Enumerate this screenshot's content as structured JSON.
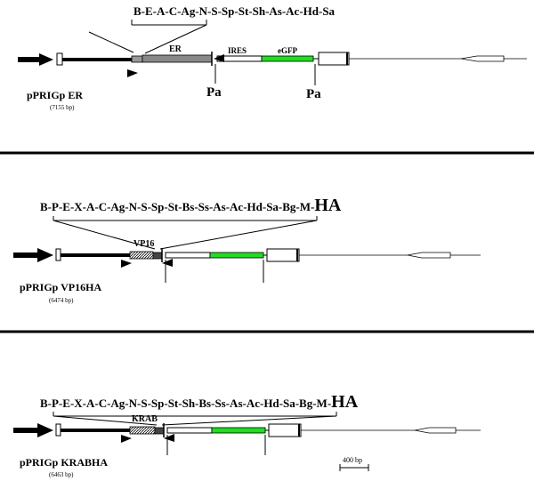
{
  "panels": [
    {
      "sites": "B-E-A-C-Ag-N-S-Sp-St-Sh-As-Ac-Hd-Sa",
      "ha_tag": "",
      "insert_label": "ER",
      "ires_label": "IRES",
      "gfp_label": "eGFP",
      "pa_left": "Pa",
      "pa_right": "Pa",
      "plasmid_name": "pPRIGp ER",
      "plasmid_size": "(7155 bp)"
    },
    {
      "sites": "B-P-E-X-A-C-Ag-N-S-Sp-St-Bs-Ss-As-Ac-Hd-Sa-Bg-M-",
      "ha_tag": "HA",
      "insert_label": "VP16",
      "plasmid_name": "pPRIGp VP16HA",
      "plasmid_size": "(6474  bp)"
    },
    {
      "sites": "B-P-E-X-A-C-Ag-N-S-Sp-St-Sh-Bs-Ss-As-Ac-Hd-Sa-Bg-M-",
      "ha_tag": "HA",
      "insert_label": "KRAB",
      "plasmid_name": "pPRIGp KRABHA",
      "plasmid_size": "(6463  bp)"
    }
  ],
  "scale_bar_label": "400 bp",
  "colors": {
    "egfp": "#22dd22",
    "insert": "#888888",
    "line": "#000000"
  }
}
